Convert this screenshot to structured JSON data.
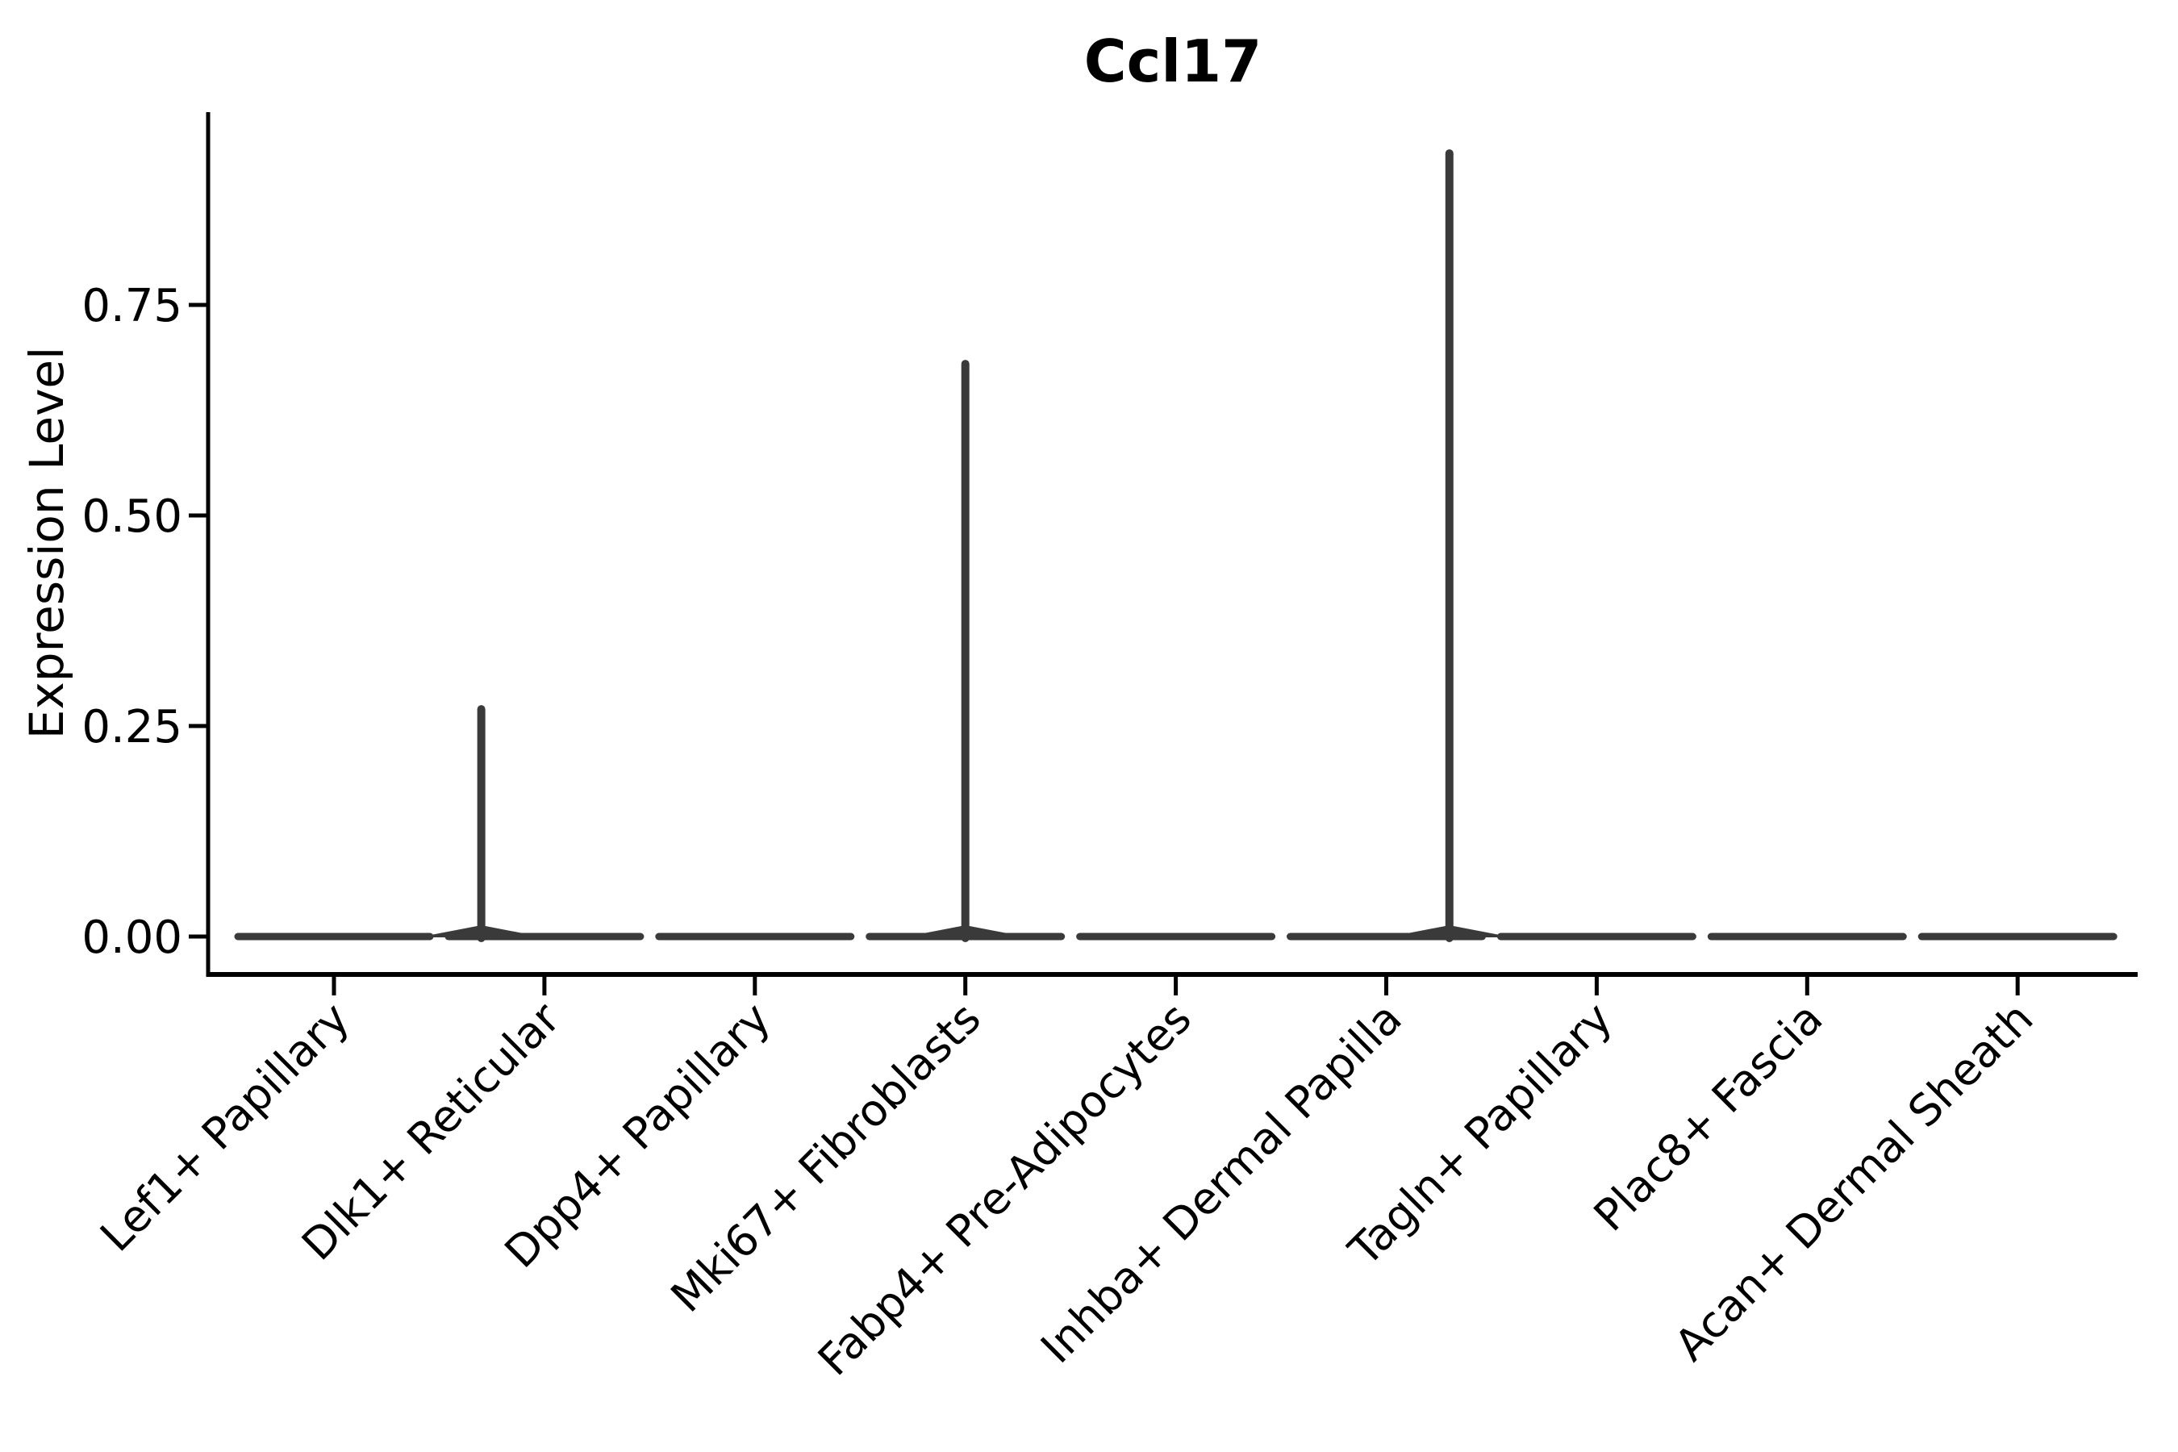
{
  "chart_data": {
    "type": "violin",
    "title": "Ccl17",
    "ylabel": "Expression Level",
    "xlabel": "",
    "ylim": [
      0,
      0.98
    ],
    "ytick_labels": [
      "0.00",
      "0.25",
      "0.50",
      "0.75"
    ],
    "ytick_values": [
      0,
      0.25,
      0.5,
      0.75
    ],
    "grid": false,
    "legend": "none",
    "categories": [
      "Lef1+ Papillary",
      "Dlk1+ Reticular",
      "Dpp4+ Papillary",
      "Mki67+ Fibroblasts",
      "Fabp4+ Pre-Adipocytes",
      "Inhba+ Dermal Papilla",
      "Tagln+ Papillary",
      "Plac8+ Fascia",
      "Acan+ Dermal Sheath"
    ],
    "violins": [
      {
        "category": "Lef1+ Papillary",
        "zero_bar": true,
        "max_expression": 0,
        "spike_offset_frac": 0
      },
      {
        "category": "Dlk1+ Reticular",
        "zero_bar": true,
        "max_expression": 0.27,
        "spike_offset_frac": -0.3
      },
      {
        "category": "Dpp4+ Papillary",
        "zero_bar": true,
        "max_expression": 0,
        "spike_offset_frac": 0
      },
      {
        "category": "Mki67+ Fibroblasts",
        "zero_bar": true,
        "max_expression": 0.68,
        "spike_offset_frac": 0
      },
      {
        "category": "Fabp4+ Pre-Adipocytes",
        "zero_bar": true,
        "max_expression": 0,
        "spike_offset_frac": 0
      },
      {
        "category": "Inhba+ Dermal Papilla",
        "zero_bar": true,
        "max_expression": 0.93,
        "spike_offset_frac": 0.3
      },
      {
        "category": "Tagln+ Papillary",
        "zero_bar": true,
        "max_expression": 0,
        "spike_offset_frac": 0
      },
      {
        "category": "Plac8+ Fascia",
        "zero_bar": true,
        "max_expression": 0,
        "spike_offset_frac": 0
      },
      {
        "category": "Acan+ Dermal Sheath",
        "zero_bar": true,
        "max_expression": 0,
        "spike_offset_frac": 0
      }
    ],
    "colors": {
      "background": "#FFFFFF",
      "axis": "#000000",
      "text": "#000000",
      "violin_stroke": "#3A3A3A"
    }
  }
}
